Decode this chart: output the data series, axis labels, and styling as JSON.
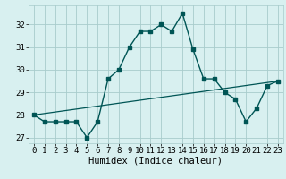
{
  "x": [
    0,
    1,
    2,
    3,
    4,
    5,
    6,
    7,
    8,
    9,
    10,
    11,
    12,
    13,
    14,
    15,
    16,
    17,
    18,
    19,
    20,
    21,
    22,
    23
  ],
  "humidex": [
    28.0,
    27.7,
    27.7,
    27.7,
    27.7,
    27.0,
    27.7,
    29.6,
    30.0,
    31.0,
    31.7,
    31.7,
    32.0,
    31.7,
    32.5,
    30.9,
    29.6,
    29.6,
    29.0,
    28.7,
    27.7,
    28.3,
    29.3,
    29.5
  ],
  "trend_x": [
    0,
    23
  ],
  "trend_y": [
    28.0,
    29.5
  ],
  "bg_color": "#d8f0f0",
  "grid_color": "#a8cccc",
  "line_color": "#005555",
  "ylabel_vals": [
    27,
    28,
    29,
    30,
    31,
    32
  ],
  "xlim": [
    -0.5,
    23.5
  ],
  "ylim": [
    26.75,
    32.85
  ],
  "xlabel": "Humidex (Indice chaleur)",
  "xlabel_fontsize": 7.5,
  "tick_fontsize": 6.5,
  "title_fontsize": 8
}
